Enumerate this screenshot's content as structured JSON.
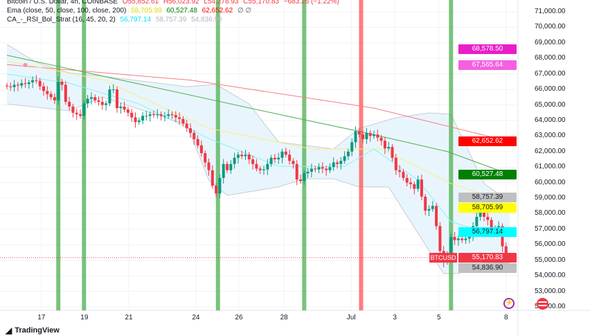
{
  "legend": {
    "symbol": "Bitcoin / U.S. Dollar, 4h, COINBASE",
    "o": "O55,852.61",
    "h": "H56,023.92",
    "l": "L54,278.93",
    "c": "C55,170.83",
    "chg": "−683.26 (−1.22%)",
    "ema_label": "Ema (close, 50, close, 100, close, 200)",
    "ema50": "58,705.99",
    "ema100": "60,527.48",
    "ema200": "62,652.62",
    "ema_extra": "∅ ∅",
    "strat_label": "CA_-_RSI_Bol_Strat (16, 45, 20, 2)",
    "bb_mid": "56,797.14",
    "bb_upper": "58,757.39",
    "bb_lower": "54,836.90"
  },
  "axis": {
    "price_labels": [
      "71,000.00",
      "70,000.00",
      "69,000.00",
      "68,000.00",
      "67,000.00",
      "66,000.00",
      "65,000.00",
      "64,000.00",
      "63,000.00",
      "62,000.00",
      "61,000.00",
      "60,000.00",
      "59,000.00",
      "58,000.00",
      "57,000.00",
      "56,000.00",
      "55,000.00",
      "54,000.00",
      "53,000.00",
      "52,000.00"
    ],
    "date_labels": [
      {
        "t": "17",
        "i": 9.4
      },
      {
        "t": "19",
        "i": 21.1
      },
      {
        "t": "21",
        "i": 33.2
      },
      {
        "t": "24",
        "i": 51.5
      },
      {
        "t": "26",
        "i": 63.2
      },
      {
        "t": "28",
        "i": 75.5
      },
      {
        "t": "Jul",
        "i": 93.8
      },
      {
        "t": "3",
        "i": 105.7
      },
      {
        "t": "5",
        "i": 117.7
      },
      {
        "t": "8",
        "i": 136.0
      }
    ]
  },
  "badges": [
    {
      "text": "68,578.50",
      "bg": "#e91ec9",
      "fg": "#ffffff",
      "price": 68578.5
    },
    {
      "text": "67,565.64",
      "bg": "#f460e0",
      "fg": "#ffffff",
      "price": 67565.64
    },
    {
      "text": "62,652.62",
      "bg": "#ff0000",
      "fg": "#ffffff",
      "price": 62652.62
    },
    {
      "text": "60,527.48",
      "bg": "#008000",
      "fg": "#ffffff",
      "price": 60527.48
    },
    {
      "text": "58,757.39",
      "bg": "#c0c0c0",
      "fg": "#131722",
      "price": 59050
    },
    {
      "text": "58,705.99",
      "bg": "#ffff00",
      "fg": "#131722",
      "price": 58500
    },
    {
      "text": "56,797.14",
      "bg": "#00ffff",
      "fg": "#131722",
      "price": 56797.14
    },
    {
      "text": "55,170.83",
      "bg": "#f23645",
      "fg": "#ffffff",
      "price": 55170.83
    },
    {
      "text": "54,836.90",
      "bg": "#c0c0c0",
      "fg": "#131722",
      "price": 54650
    }
  ],
  "symbol_tag": "BTCUSD",
  "brand": "TradingView",
  "colors": {
    "up": "#089981",
    "down": "#f23645",
    "ema50": "#f5f07a",
    "ema100": "#4caf50",
    "ema200": "#f77c80",
    "bb_mid": "#7ff5f5",
    "band_fill": "#e3f2fd",
    "band_line": "#c8ccd3",
    "signal_long": "#4caf50",
    "signal_short": "#ff5252"
  },
  "chart_data": {
    "type": "candlestick",
    "timeframe": "4h",
    "ylim": [
      51500,
      71500
    ],
    "grid": true,
    "closes": [
      66.2,
      66.15,
      66.3,
      66.25,
      66.4,
      66.35,
      66.45,
      66.6,
      66.55,
      66.2,
      65.9,
      65.7,
      65.5,
      65.3,
      66.5,
      66.3,
      65.2,
      64.9,
      64.5,
      64.4,
      64.3,
      65.1,
      65.4,
      65.5,
      65.3,
      65.2,
      65.0,
      65.1,
      66.0,
      66.0,
      64.8,
      64.9,
      64.7,
      64.5,
      64.2,
      63.9,
      64.0,
      64.3,
      64.3,
      64.4,
      64.35,
      64.4,
      64.3,
      64.3,
      64.4,
      64.35,
      64.2,
      64.1,
      63.8,
      63.5,
      63.2,
      62.8,
      62.4,
      61.9,
      61.3,
      60.8,
      59.8,
      59.3,
      60.3,
      61.2,
      60.8,
      61.2,
      61.6,
      61.8,
      61.7,
      61.8,
      61.5,
      61.2,
      60.9,
      60.8,
      60.85,
      61.2,
      61.6,
      61.5,
      61.6,
      62.0,
      61.8,
      61.4,
      61.2,
      60.2,
      60.1,
      60.6,
      60.7,
      60.9,
      60.85,
      61.0,
      60.9,
      60.8,
      61.0,
      61.3,
      61.2,
      61.4,
      61.7,
      62.0,
      62.6,
      63.3,
      63.1,
      62.8,
      63.2,
      63.0,
      63.1,
      62.9,
      62.7,
      62.2,
      62.3,
      61.6,
      60.8,
      60.7,
      60.3,
      60.0,
      59.9,
      59.6,
      60.2,
      59.1,
      58.2,
      58.3,
      58.5,
      57.2,
      55.6,
      54.9,
      55.4,
      56.5,
      56.3,
      56.4,
      56.3,
      56.4,
      56.6,
      57.2,
      57.8,
      58.2,
      57.8,
      57.6,
      57.0,
      56.9,
      57.2,
      55.9,
      55.17
    ],
    "close_units": "thousand USD",
    "lines": {
      "ema200": [
        [
          0,
          67.6
        ],
        [
          50,
          66.6
        ],
        [
          100,
          64.8
        ],
        [
          137,
          62.65
        ]
      ],
      "ema100": [
        [
          0,
          68.2
        ],
        [
          74,
          64.4
        ],
        [
          96,
          63.3
        ],
        [
          120,
          62.0
        ],
        [
          137,
          60.53
        ]
      ],
      "ema50": [
        [
          0,
          67.83
        ],
        [
          26,
          66.63
        ],
        [
          55,
          63.5
        ],
        [
          83,
          62.17
        ],
        [
          102,
          62.17
        ],
        [
          121,
          59.94
        ],
        [
          137,
          58.71
        ]
      ],
      "bb_mid": [
        [
          0,
          66.99
        ],
        [
          17,
          66.4
        ],
        [
          36,
          65.07
        ],
        [
          55,
          62.84
        ],
        [
          74,
          61.05
        ],
        [
          92,
          61.05
        ],
        [
          100,
          62.17
        ],
        [
          112,
          60.16
        ],
        [
          121,
          57.49
        ],
        [
          127,
          57.04
        ],
        [
          137,
          56.8
        ]
      ],
      "bb_upper": [
        [
          0,
          68.9
        ],
        [
          8,
          67.74
        ],
        [
          17,
          67.07
        ],
        [
          26,
          66.85
        ],
        [
          49,
          66.18
        ],
        [
          57,
          66.32
        ],
        [
          66,
          65.07
        ],
        [
          74,
          62.61
        ],
        [
          89,
          62.17
        ],
        [
          96,
          63.5
        ],
        [
          106,
          64.18
        ],
        [
          115,
          64.49
        ],
        [
          121,
          64.4
        ],
        [
          130,
          59.94
        ],
        [
          137,
          58.76
        ]
      ],
      "bb_lower": [
        [
          0,
          65.07
        ],
        [
          17,
          64.62
        ],
        [
          26,
          65.51
        ],
        [
          49,
          63.73
        ],
        [
          55,
          60.16
        ],
        [
          60,
          59.18
        ],
        [
          74,
          59.72
        ],
        [
          81,
          60.25
        ],
        [
          89,
          60.25
        ],
        [
          96,
          59.72
        ],
        [
          104,
          59.72
        ],
        [
          119,
          54.14
        ],
        [
          123,
          54.14
        ],
        [
          130,
          54.81
        ],
        [
          137,
          54.84
        ]
      ]
    },
    "signals": [
      {
        "i": 14,
        "side": "long"
      },
      {
        "i": 21,
        "side": "long"
      },
      {
        "i": 57.5,
        "side": "long"
      },
      {
        "i": 81,
        "side": "long"
      },
      {
        "i": 96.5,
        "side": "short"
      },
      {
        "i": 121,
        "side": "long"
      }
    ],
    "marker": {
      "i": 5,
      "price": 67.57
    },
    "last_price": 55170.83
  }
}
